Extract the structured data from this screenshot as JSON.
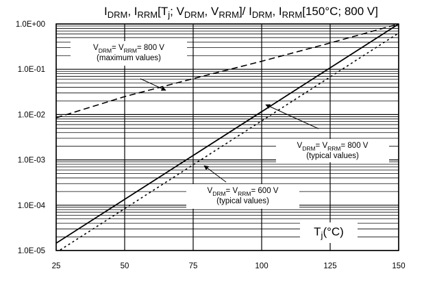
{
  "chart_data": {
    "type": "line",
    "title": {
      "segments": [
        {
          "t": "I",
          "s": "n"
        },
        {
          "t": "DRM",
          "s": "sub"
        },
        {
          "t": ", I",
          "s": "n"
        },
        {
          "t": "RRM",
          "s": "sub"
        },
        {
          "t": "[T",
          "s": "n"
        },
        {
          "t": "j",
          "s": "sub"
        },
        {
          "t": "; V",
          "s": "n"
        },
        {
          "t": "DRM",
          "s": "sub"
        },
        {
          "t": ", V",
          "s": "n"
        },
        {
          "t": "RRM",
          "s": "sub"
        },
        {
          "t": "]/ I",
          "s": "n"
        },
        {
          "t": "DRM",
          "s": "sub"
        },
        {
          "t": ", I",
          "s": "n"
        },
        {
          "t": "RRM",
          "s": "sub"
        },
        {
          "t": "[150°C; 800 V]",
          "s": "n"
        }
      ]
    },
    "x_axis": {
      "ticks": [
        25,
        50,
        75,
        100,
        125,
        150
      ],
      "range": [
        25,
        150
      ],
      "label": {
        "segments": [
          {
            "t": "T",
            "s": "n"
          },
          {
            "t": "j",
            "s": "sub"
          },
          {
            "t": "(°C)",
            "s": "n"
          }
        ]
      }
    },
    "y_axis": {
      "scale": "log",
      "range": [
        1e-05,
        1
      ],
      "ticks": [
        {
          "value": 1,
          "label": "1.0E+00"
        },
        {
          "value": 0.1,
          "label": "1.0E-01"
        },
        {
          "value": 0.01,
          "label": "1.0E-02"
        },
        {
          "value": 0.001,
          "label": "1.0E-03"
        },
        {
          "value": 0.0001,
          "label": "1.0E-04"
        },
        {
          "value": 1e-05,
          "label": "1.0E-05"
        }
      ]
    },
    "grid": true,
    "series": [
      {
        "style": "dashed",
        "x": [
          25,
          50,
          75,
          100,
          125,
          150
        ],
        "y": [
          0.0085,
          0.025,
          0.062,
          0.15,
          0.38,
          1.0
        ]
      },
      {
        "style": "solid",
        "x": [
          25,
          150
        ],
        "y": [
          1.45e-05,
          1.0
        ]
      },
      {
        "style": "dotted",
        "x": [
          25,
          150
        ],
        "y": [
          9e-06,
          0.63
        ]
      }
    ],
    "annotations": [
      {
        "lines": [
          {
            "segments": [
              {
                "t": "V",
                "s": "n"
              },
              {
                "t": "DRM",
                "s": "sub"
              },
              {
                "t": "= V",
                "s": "n"
              },
              {
                "t": "RRM",
                "s": "sub"
              },
              {
                "t": "= 800 V",
                "s": "n"
              }
            ]
          },
          {
            "segments": [
              {
                "t": "(maximum values)",
                "s": "n"
              }
            ]
          }
        ]
      },
      {
        "lines": [
          {
            "segments": [
              {
                "t": "V",
                "s": "n"
              },
              {
                "t": "DRM",
                "s": "sub"
              },
              {
                "t": "= V",
                "s": "n"
              },
              {
                "t": "RRM",
                "s": "sub"
              },
              {
                "t": "= 800 V",
                "s": "n"
              }
            ]
          },
          {
            "segments": [
              {
                "t": "(typical values)",
                "s": "n"
              }
            ]
          }
        ]
      },
      {
        "lines": [
          {
            "segments": [
              {
                "t": "V",
                "s": "n"
              },
              {
                "t": "DRM",
                "s": "sub"
              },
              {
                "t": "= V",
                "s": "n"
              },
              {
                "t": "RRM",
                "s": "sub"
              },
              {
                "t": "= 600 V",
                "s": "n"
              }
            ]
          },
          {
            "segments": [
              {
                "t": "(typical values)",
                "s": "n"
              }
            ]
          }
        ]
      }
    ]
  }
}
